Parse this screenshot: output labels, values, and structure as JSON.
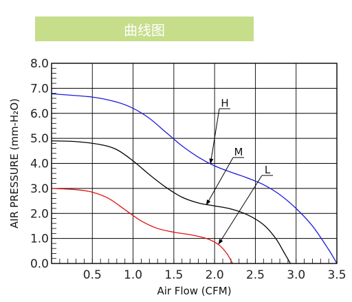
{
  "header": {
    "title": "曲线图",
    "banner_color": "#c6dd8a"
  },
  "chart_data": {
    "type": "line",
    "title": "曲线图",
    "xlabel": "Air Flow (CFM)",
    "ylabel": "AIR PRESSURE (mm-H₂O)",
    "xlim": [
      0,
      3.5
    ],
    "ylim": [
      0,
      8
    ],
    "x_ticks": [
      "0.5",
      "1.0",
      "1.5",
      "2.0",
      "2.5",
      "3.0",
      "3.5"
    ],
    "y_ticks": [
      "0.0",
      "1.0",
      "2.0",
      "3.0",
      "4.0",
      "5.0",
      "6.0",
      "7.0",
      "8.0"
    ],
    "grid": true,
    "series": [
      {
        "name": "H",
        "color": "#1a1adb",
        "x": [
          0,
          0.5,
          0.8,
          1.0,
          1.2,
          1.4,
          1.6,
          1.8,
          2.0,
          2.2,
          2.4,
          2.6,
          2.8,
          3.0,
          3.2,
          3.4,
          3.5
        ],
        "y": [
          6.78,
          6.65,
          6.45,
          6.2,
          5.8,
          5.25,
          4.7,
          4.25,
          3.9,
          3.65,
          3.42,
          3.15,
          2.75,
          2.2,
          1.5,
          0.55,
          0.0
        ]
      },
      {
        "name": "M",
        "color": "#000000",
        "x": [
          0,
          0.3,
          0.6,
          0.8,
          1.0,
          1.2,
          1.4,
          1.6,
          1.8,
          2.0,
          2.2,
          2.4,
          2.6,
          2.75,
          2.85,
          2.93
        ],
        "y": [
          4.9,
          4.87,
          4.75,
          4.55,
          4.1,
          3.55,
          3.05,
          2.65,
          2.42,
          2.3,
          2.18,
          1.95,
          1.55,
          1.0,
          0.45,
          0.0
        ]
      },
      {
        "name": "L",
        "color": "#e01010",
        "x": [
          0,
          0.3,
          0.5,
          0.7,
          0.9,
          1.1,
          1.3,
          1.5,
          1.7,
          1.9,
          2.05,
          2.15,
          2.22
        ],
        "y": [
          3.0,
          2.95,
          2.85,
          2.6,
          2.15,
          1.7,
          1.4,
          1.25,
          1.15,
          1.0,
          0.75,
          0.4,
          0.0
        ]
      }
    ],
    "annotations": [
      {
        "label": "H",
        "point": [
          1.95,
          4.0
        ]
      },
      {
        "label": "M",
        "point": [
          1.9,
          2.35
        ]
      },
      {
        "label": "L",
        "point": [
          2.05,
          0.78
        ]
      }
    ]
  }
}
